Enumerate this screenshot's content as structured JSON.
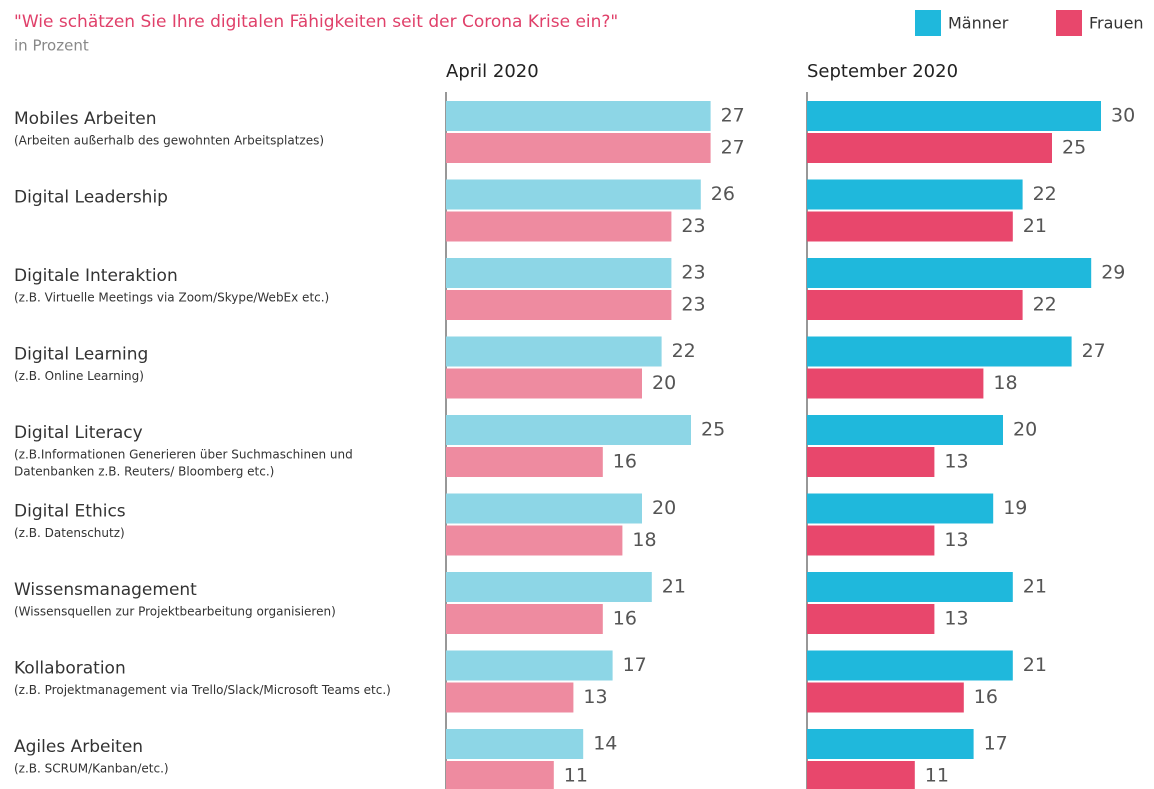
{
  "title": "\"Wie schätzen Sie Ihre digitalen Fähigkeiten seit der Corona Krise ein?\"",
  "subtitle": "in Prozent",
  "categories": [
    "Mobiles Arbeiten",
    "Digital Leadership",
    "Digitale Interaktion",
    "Digital Learning",
    "Digital Literacy",
    "Digital Ethics",
    "Wissensmanagement",
    "Kollaboration",
    "Agiles Arbeiten"
  ],
  "notes": [
    [
      "(Arbeiten außerhalb des gewohnten Arbeitsplatzes)"
    ],
    null,
    [
      "(z.B. Virtuelle Meetings via Zoom/Skype/WebEx etc.)"
    ],
    [
      "(z.B. Online Learning)"
    ],
    [
      "(z.B.Informationen Generieren über Suchmaschinen und",
      "Datenbanken z.B. Reuters/ Bloomberg etc.)"
    ],
    [
      "(z.B. Datenschutz)"
    ],
    [
      "(Wissensquellen zur Projektbearbeitung organisieren)"
    ],
    [
      "(z.B. Projektmanagement via Trello/Slack/Microsoft Teams etc.)"
    ],
    [
      "(z.B. SCRUM/Kanban/etc.)"
    ]
  ],
  "chart_data": [
    {
      "type": "bar",
      "title": "April 2020",
      "xlim": [
        0,
        30
      ],
      "series": [
        {
          "color": "#8dd6e6",
          "values": [
            27,
            26,
            23,
            22,
            25,
            20,
            21,
            17,
            14
          ]
        },
        {
          "color": "#ee8ba0",
          "values": [
            27,
            23,
            23,
            20,
            16,
            18,
            16,
            13,
            11
          ]
        }
      ]
    },
    {
      "type": "bar",
      "title": "September 2020",
      "xlim": [
        0,
        30
      ],
      "series": [
        {
          "name": "Männer",
          "color": "#1fb8dc",
          "values": [
            30,
            22,
            29,
            27,
            20,
            19,
            21,
            21,
            17
          ]
        },
        {
          "name": "Frauen",
          "color": "#e8476c",
          "values": [
            25,
            21,
            22,
            18,
            13,
            13,
            13,
            16,
            11
          ]
        }
      ]
    }
  ]
}
